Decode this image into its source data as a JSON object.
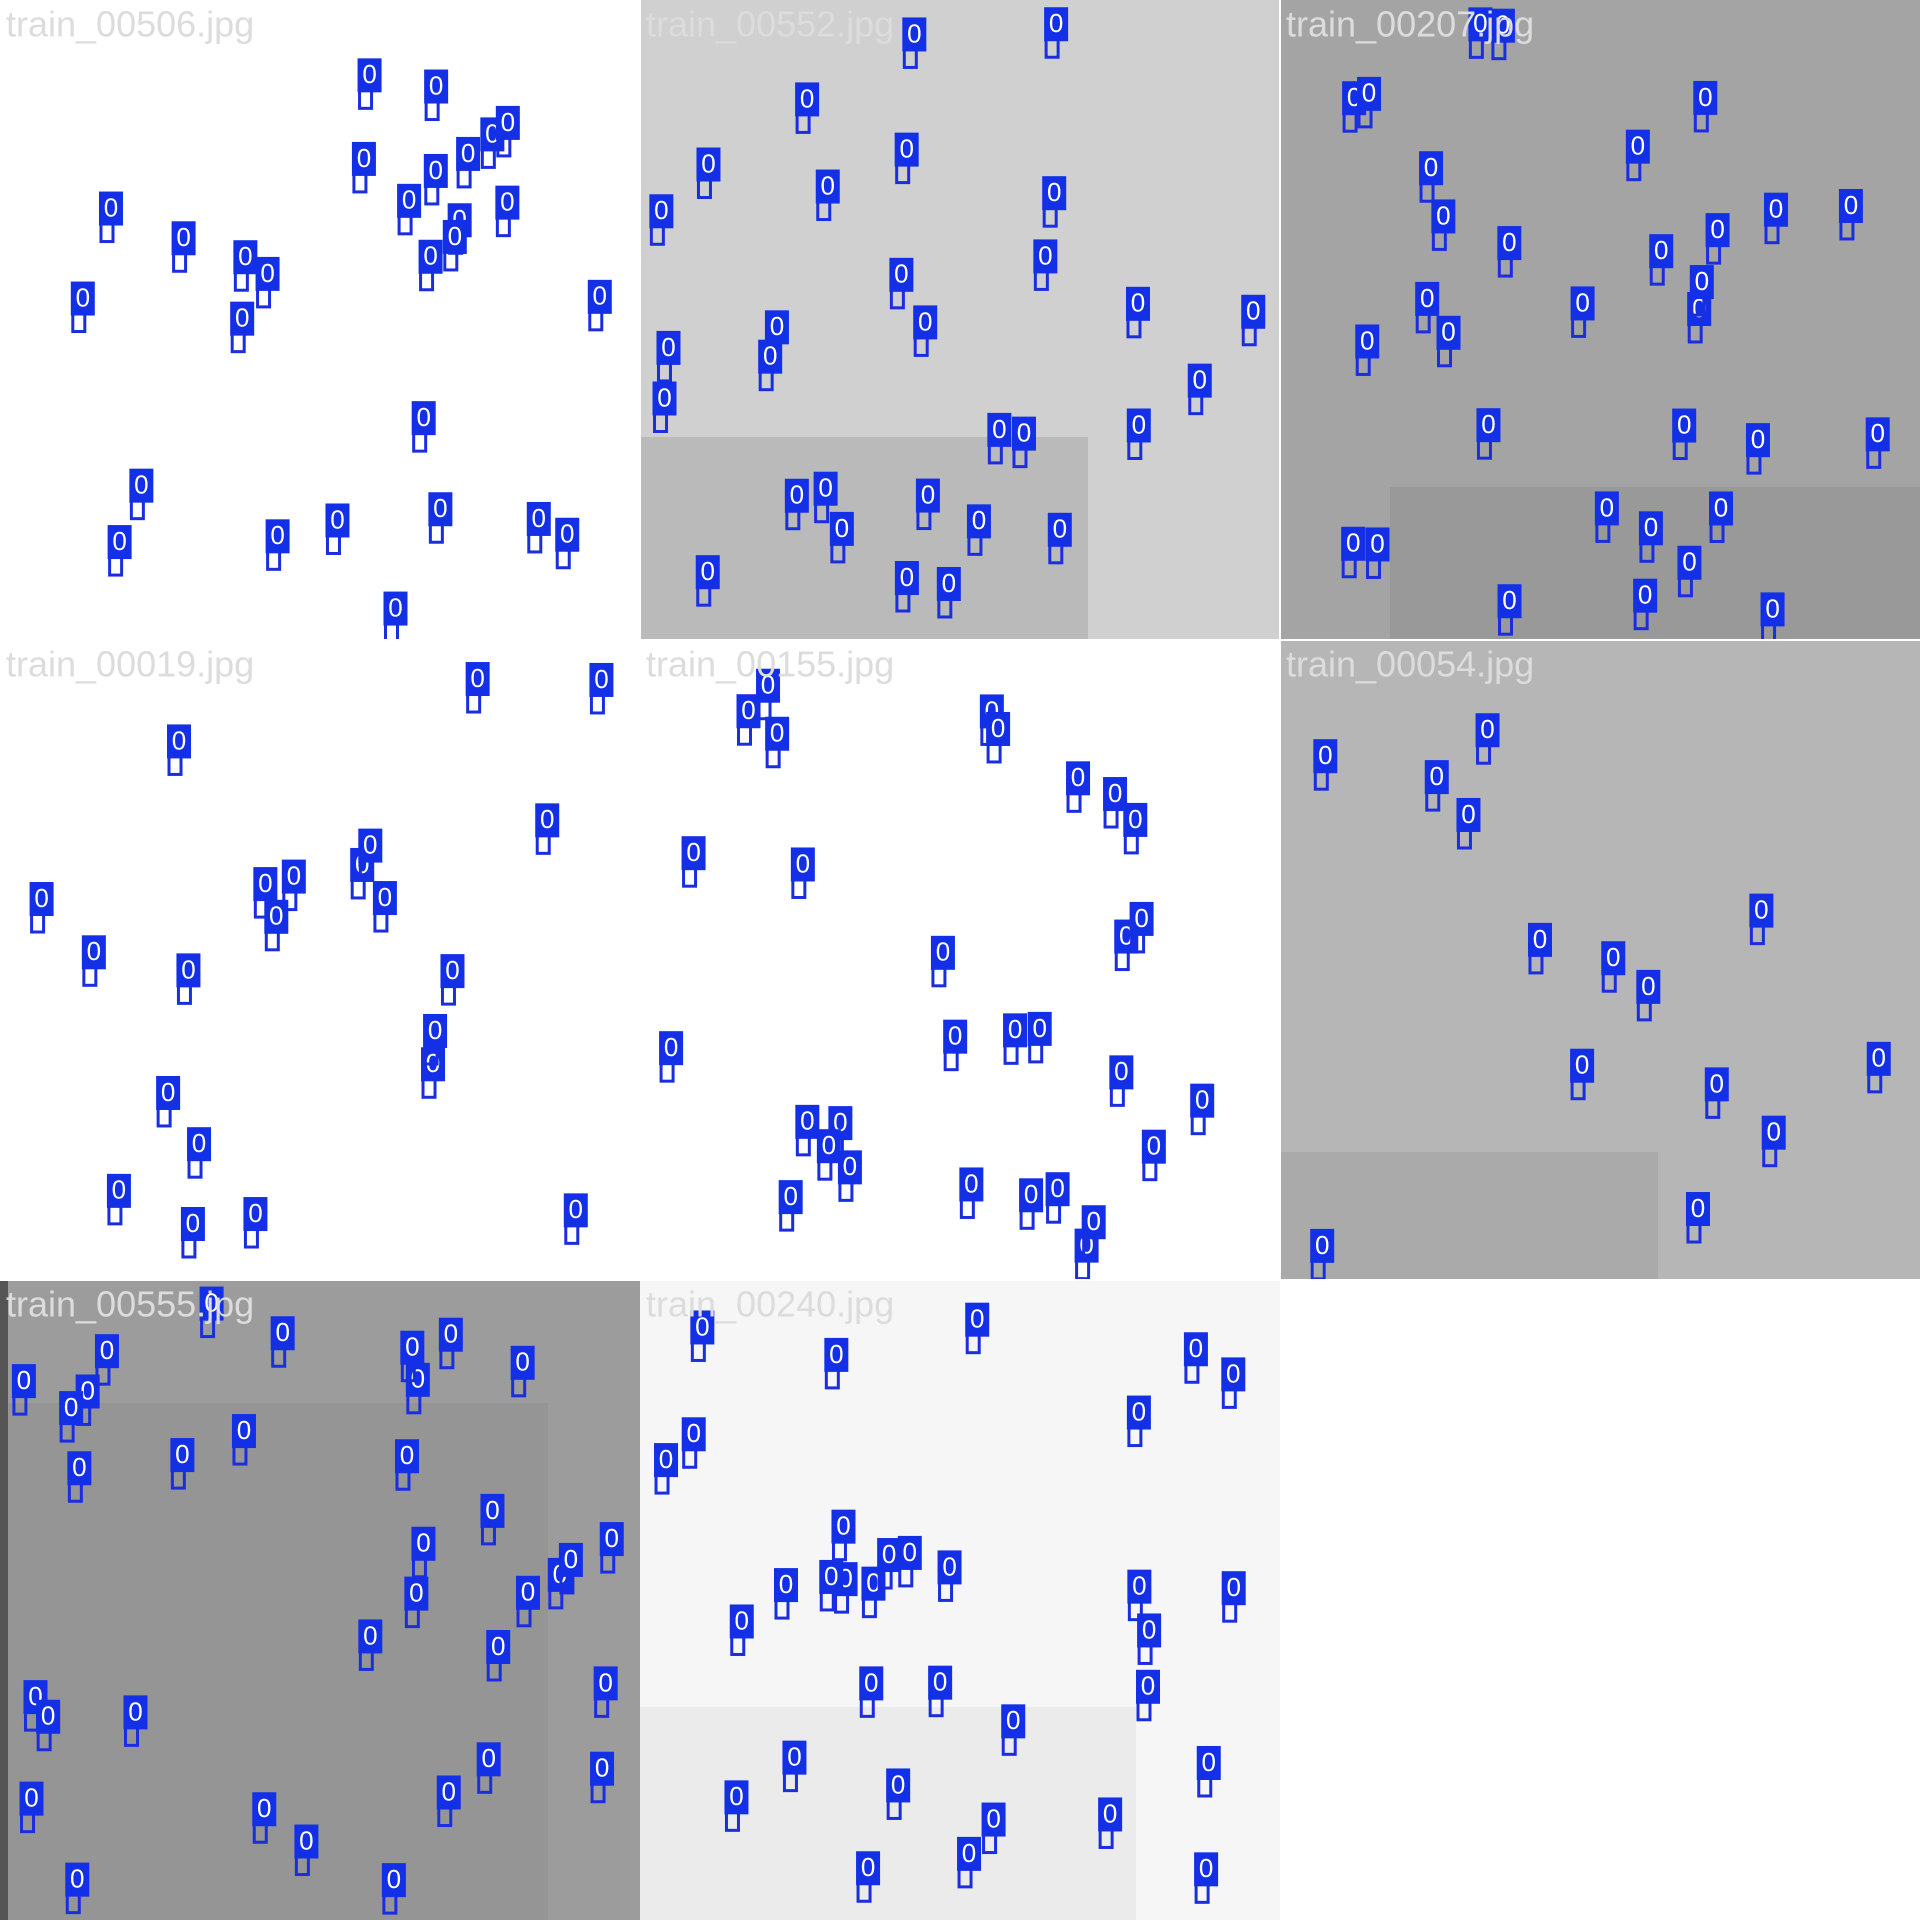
{
  "tiles": [
    {
      "filename": "train_00506.jpg",
      "boxes": [
        "0",
        "0",
        "0",
        "0",
        "0",
        "0",
        "0",
        "0",
        "0",
        "0",
        "0",
        "0",
        "0",
        "0",
        "0",
        "0",
        "0",
        "0",
        "0",
        "0",
        "0",
        "0",
        "0",
        "0",
        "0",
        "0",
        "0",
        "0"
      ]
    },
    {
      "filename": "train_00552.jpg",
      "boxes": [
        "0",
        "0",
        "0",
        "0",
        "0",
        "0",
        "0",
        "0",
        "0",
        "0",
        "0",
        "0",
        "0",
        "0",
        "0",
        "0",
        "0",
        "0",
        "0",
        "0",
        "0",
        "0",
        "0",
        "0",
        "0",
        "0",
        "0",
        "0",
        "0",
        "0"
      ]
    },
    {
      "filename": "train_00207.jpg",
      "boxes": [
        "0",
        "0",
        "0",
        "0",
        "0",
        "0",
        "0",
        "0",
        "0",
        "0",
        "0",
        "0",
        "0",
        "0",
        "0",
        "0",
        "0",
        "0",
        "0",
        "0",
        "0",
        "0",
        "0",
        "0",
        "0",
        "0",
        "0",
        "0",
        "0",
        "0",
        "0",
        "0"
      ]
    },
    {
      "filename": "train_00019.jpg",
      "boxes": [
        "0",
        "0",
        "0",
        "0",
        "0",
        "0",
        "0",
        "0",
        "0",
        "0",
        "0",
        "0",
        "0",
        "0",
        "0",
        "0",
        "0",
        "0",
        "0",
        "0",
        "0",
        "0"
      ]
    },
    {
      "filename": "train_00155.jpg",
      "boxes": [
        "0",
        "0",
        "0",
        "0",
        "0",
        "0",
        "0",
        "0",
        "0",
        "0",
        "0",
        "0",
        "0",
        "0",
        "0",
        "0",
        "0",
        "0",
        "0",
        "0",
        "0",
        "0",
        "0",
        "0",
        "0",
        "0",
        "0",
        "0",
        "0",
        "0"
      ]
    },
    {
      "filename": "train_00054.jpg",
      "boxes": [
        "0",
        "0",
        "0",
        "0",
        "0",
        "0",
        "0",
        "0",
        "0",
        "0",
        "0",
        "0",
        "0",
        "0"
      ]
    },
    {
      "filename": "train_00555.jpg",
      "boxes": [
        "0",
        "0",
        "0",
        "0",
        "0",
        "0",
        "0",
        "0",
        "0",
        "0",
        "0",
        "0",
        "0",
        "0",
        "0",
        "0",
        "0",
        "0",
        "0",
        "0",
        "0",
        "0",
        "0",
        "0",
        "0",
        "0",
        "0",
        "0",
        "0",
        "0",
        "0",
        "0",
        "0",
        "0",
        "0"
      ]
    },
    {
      "filename": "train_00240.jpg",
      "boxes": [
        "0",
        "0",
        "0",
        "0",
        "0",
        "0",
        "0",
        "0",
        "0",
        "0",
        "0",
        "0",
        "0",
        "0",
        "0",
        "0",
        "0",
        "0",
        "0",
        "0",
        "0",
        "0",
        "0",
        "0",
        "0",
        "0",
        "0",
        "0",
        "0",
        "0",
        "0",
        "0",
        "0"
      ]
    }
  ]
}
